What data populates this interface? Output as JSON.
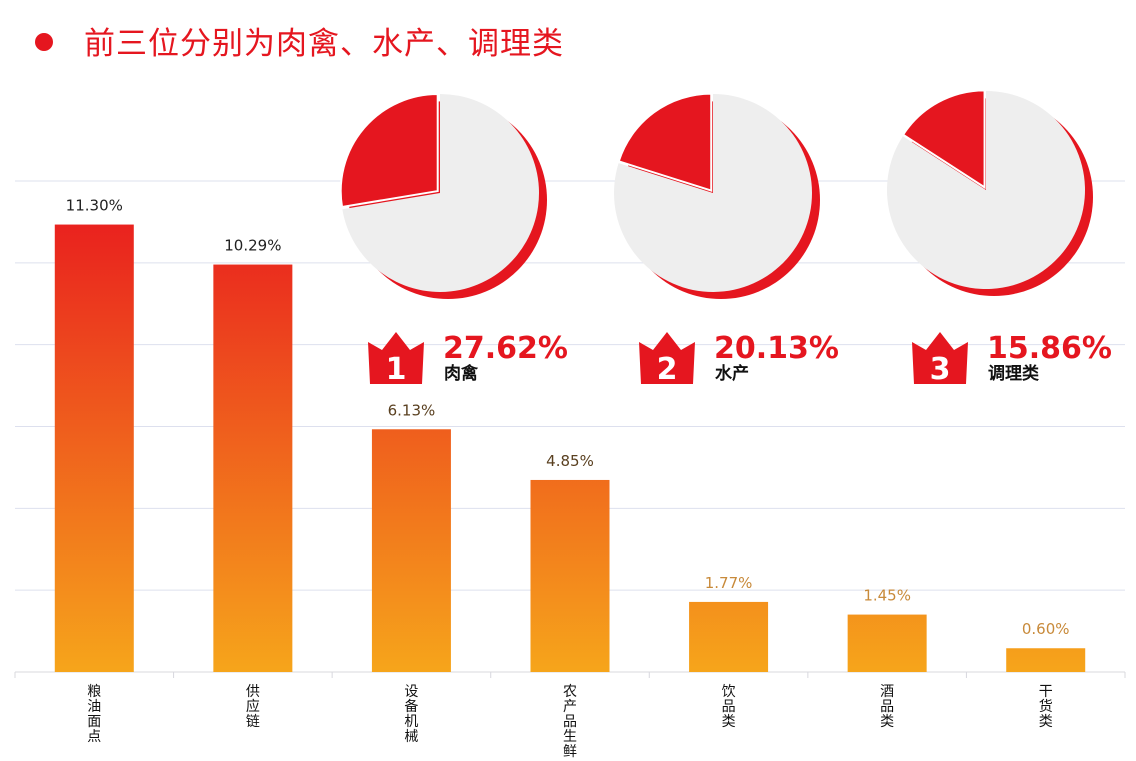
{
  "title": "前三位分别为肉禽、水产、调理类",
  "colors": {
    "accent": "#e5161f",
    "bar_top": "#e8151f",
    "bar_bottom": "#f6a51b",
    "pie_rest": "#eeeeee",
    "grid": "#dde0ee"
  },
  "chart_data": [
    {
      "type": "bar",
      "categories": [
        "粮油面点",
        "供应链",
        "设备机械",
        "农产品生鲜",
        "饮品类",
        "酒品类",
        "干货类"
      ],
      "values": [
        11.3,
        10.29,
        6.13,
        4.85,
        1.77,
        1.45,
        0.6
      ],
      "value_labels": [
        "11.30%",
        "10.29%",
        "6.13%",
        "4.85%",
        "1.77%",
        "1.45%",
        "0.60%"
      ],
      "ylim": [
        0,
        12.4
      ],
      "grid": true,
      "xlabel": "",
      "ylabel": ""
    },
    {
      "type": "pie",
      "items": [
        {
          "rank": "1",
          "label": "肉禽",
          "value": 27.62,
          "value_label": "27.62%"
        },
        {
          "rank": "2",
          "label": "水产",
          "value": 20.13,
          "value_label": "20.13%"
        },
        {
          "rank": "3",
          "label": "调理类",
          "value": 15.86,
          "value_label": "15.86%"
        }
      ]
    }
  ]
}
